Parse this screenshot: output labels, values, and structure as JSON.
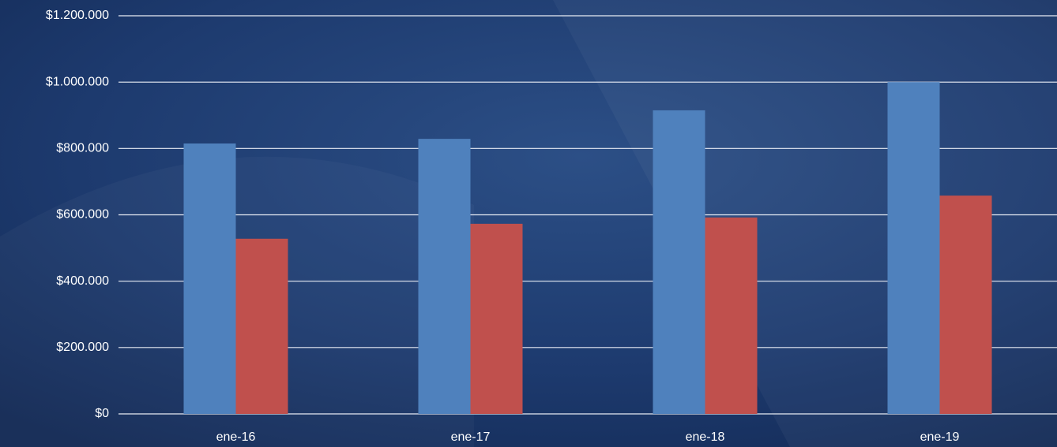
{
  "chart_data": {
    "type": "bar",
    "categories": [
      "ene-16",
      "ene-17",
      "ene-18",
      "ene-19"
    ],
    "series": [
      {
        "color": "#4f81bd",
        "values": [
          815000,
          829000,
          915000,
          1000000
        ]
      },
      {
        "color": "#c0504d",
        "values": [
          528000,
          573000,
          592000,
          658000
        ]
      }
    ],
    "ylim": [
      0,
      1200000
    ],
    "yticks": [
      {
        "value": 0,
        "label": "$0"
      },
      {
        "value": 200000,
        "label": "$200.000"
      },
      {
        "value": 400000,
        "label": "$400.000"
      },
      {
        "value": 600000,
        "label": "$600.000"
      },
      {
        "value": 800000,
        "label": "$800.000"
      },
      {
        "value": 1000000,
        "label": "$1.000.000"
      },
      {
        "value": 1200000,
        "label": "$1.200.000"
      }
    ],
    "grid": true
  }
}
